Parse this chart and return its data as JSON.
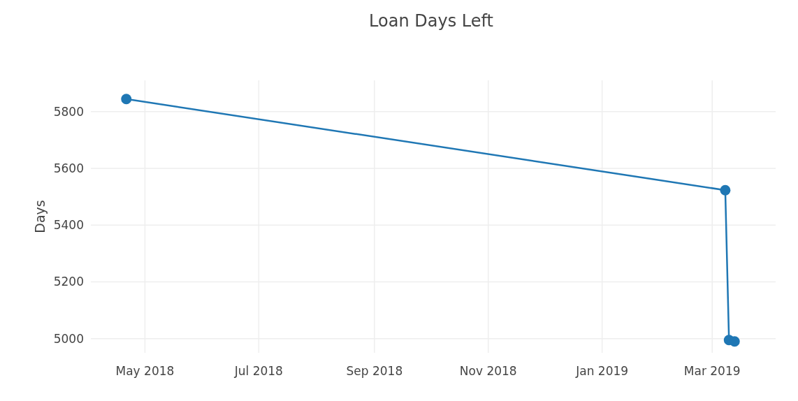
{
  "chart_data": {
    "type": "line",
    "title": "Loan Days Left",
    "ylabel": "Days",
    "x": [
      "2018-04-21",
      "2019-03-08",
      "2019-03-10",
      "2019-03-13"
    ],
    "series": [
      {
        "color": "#1f77b4",
        "values": [
          5844,
          5523,
          4995,
          4990
        ]
      }
    ],
    "xlim": [
      "2018-04-02",
      "2019-04-04"
    ],
    "xticks": [
      {
        "value": "2018-05-01",
        "label": "May 2018"
      },
      {
        "value": "2018-07-01",
        "label": "Jul 2018"
      },
      {
        "value": "2018-09-01",
        "label": "Sep 2018"
      },
      {
        "value": "2018-11-01",
        "label": "Nov 2018"
      },
      {
        "value": "2019-01-01",
        "label": "Jan 2019"
      },
      {
        "value": "2019-03-01",
        "label": "Mar 2019"
      }
    ],
    "ylim": [
      4950,
      5910
    ],
    "yticks": [
      5000,
      5200,
      5400,
      5600,
      5800
    ],
    "grid": true,
    "marker": "circle",
    "line_style": "solid"
  }
}
